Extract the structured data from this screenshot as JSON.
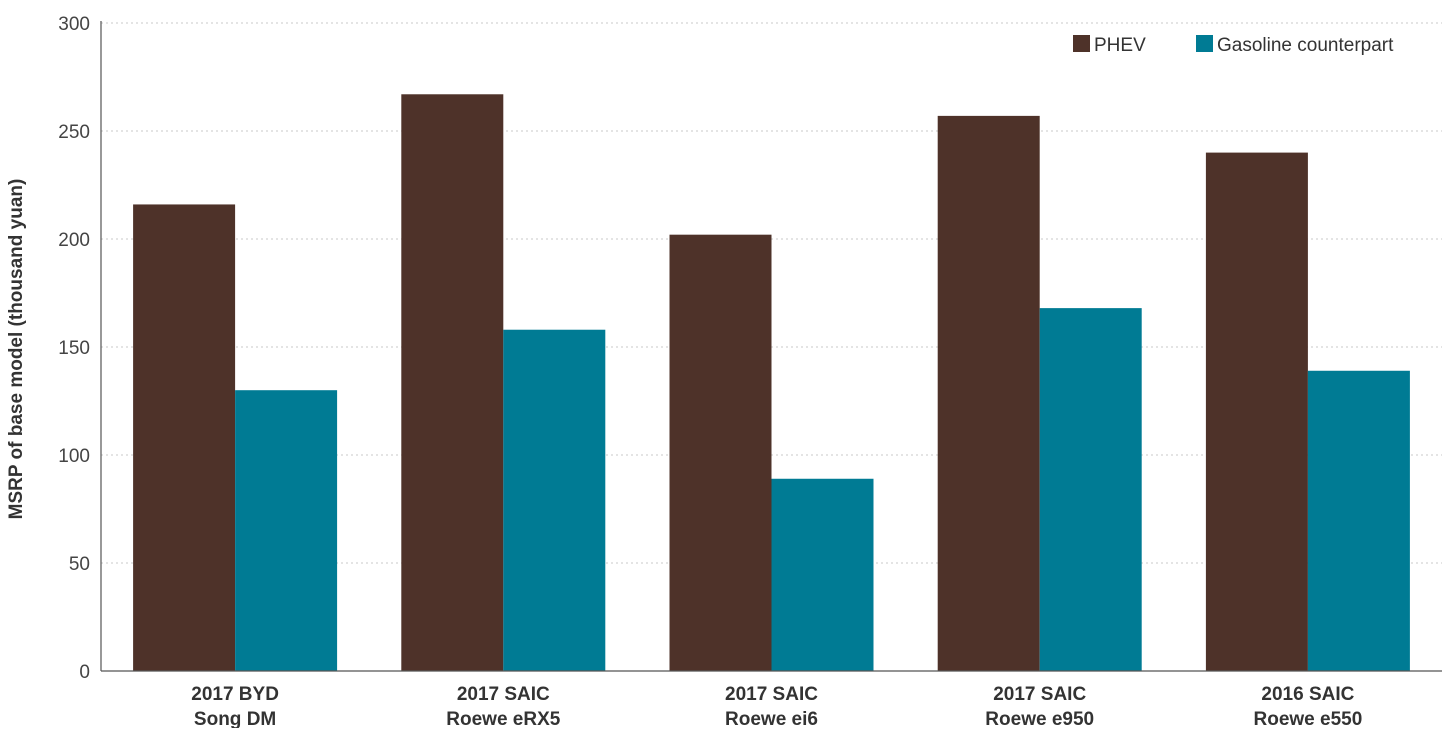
{
  "chart_data": {
    "type": "bar",
    "title": "",
    "xlabel": "",
    "ylabel": "MSRP of base model (thousand yuan)",
    "ylim": [
      0,
      300
    ],
    "yticks": [
      0,
      50,
      100,
      150,
      200,
      250,
      300
    ],
    "grid": true,
    "legend_position": "top-right",
    "categories": [
      [
        "2017 BYD",
        "Song DM"
      ],
      [
        "2017 SAIC",
        "Roewe eRX5"
      ],
      [
        "2017 SAIC",
        "Roewe ei6"
      ],
      [
        "2017 SAIC",
        "Roewe e950"
      ],
      [
        "2016 SAIC",
        "Roewe e550"
      ]
    ],
    "series": [
      {
        "name": "PHEV",
        "color": "#4e3229",
        "values": [
          216,
          267,
          202,
          257,
          240
        ]
      },
      {
        "name": "Gasoline counterpart",
        "color": "#007b94",
        "values": [
          130,
          158,
          89,
          168,
          139
        ]
      }
    ]
  }
}
